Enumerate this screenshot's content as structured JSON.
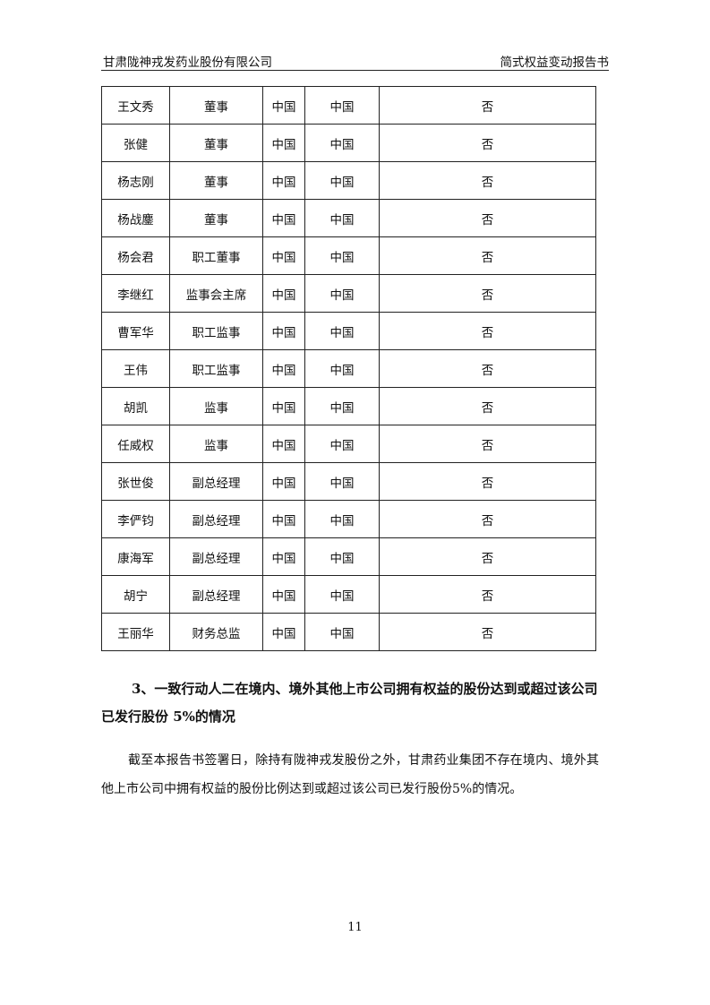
{
  "header": {
    "company": "甘肃陇神戎发药业股份有限公司",
    "doc_title": "简式权益变动报告书"
  },
  "table": {
    "rows": [
      [
        "王文秀",
        "董事",
        "中国",
        "中国",
        "否"
      ],
      [
        "张健",
        "董事",
        "中国",
        "中国",
        "否"
      ],
      [
        "杨志刚",
        "董事",
        "中国",
        "中国",
        "否"
      ],
      [
        "杨战鏖",
        "董事",
        "中国",
        "中国",
        "否"
      ],
      [
        "杨会君",
        "职工董事",
        "中国",
        "中国",
        "否"
      ],
      [
        "李继红",
        "监事会主席",
        "中国",
        "中国",
        "否"
      ],
      [
        "曹军华",
        "职工监事",
        "中国",
        "中国",
        "否"
      ],
      [
        "王伟",
        "职工监事",
        "中国",
        "中国",
        "否"
      ],
      [
        "胡凯",
        "监事",
        "中国",
        "中国",
        "否"
      ],
      [
        "任威权",
        "监事",
        "中国",
        "中国",
        "否"
      ],
      [
        "张世俊",
        "副总经理",
        "中国",
        "中国",
        "否"
      ],
      [
        "李俨钧",
        "副总经理",
        "中国",
        "中国",
        "否"
      ],
      [
        "康海军",
        "副总经理",
        "中国",
        "中国",
        "否"
      ],
      [
        "胡宁",
        "副总经理",
        "中国",
        "中国",
        "否"
      ],
      [
        "王丽华",
        "财务总监",
        "中国",
        "中国",
        "否"
      ]
    ]
  },
  "section": {
    "heading": "3、一致行动人二在境内、境外其他上市公司拥有权益的股份达到或超过该公司已发行股份 5%的情况",
    "paragraph": "截至本报告书签署日，除持有陇神戎发股份之外，甘肃药业集团不存在境内、境外其他上市公司中拥有权益的股份比例达到或超过该公司已发行股份5%的情况。"
  },
  "page_number": "11"
}
